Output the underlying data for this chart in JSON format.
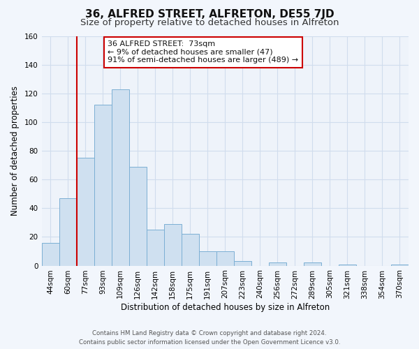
{
  "title": "36, ALFRED STREET, ALFRETON, DE55 7JD",
  "subtitle": "Size of property relative to detached houses in Alfreton",
  "xlabel": "Distribution of detached houses by size in Alfreton",
  "ylabel": "Number of detached properties",
  "bar_labels": [
    "44sqm",
    "60sqm",
    "77sqm",
    "93sqm",
    "109sqm",
    "126sqm",
    "142sqm",
    "158sqm",
    "175sqm",
    "191sqm",
    "207sqm",
    "223sqm",
    "240sqm",
    "256sqm",
    "272sqm",
    "289sqm",
    "305sqm",
    "321sqm",
    "338sqm",
    "354sqm",
    "370sqm"
  ],
  "bar_values": [
    16,
    47,
    75,
    112,
    123,
    69,
    25,
    29,
    22,
    10,
    10,
    3,
    0,
    2,
    0,
    2,
    0,
    1,
    0,
    0,
    1
  ],
  "bar_color": "#cfe0f0",
  "bar_edge_color": "#7bafd4",
  "vline_color": "#cc0000",
  "vline_x": 1.5,
  "ylim": [
    0,
    160
  ],
  "yticks": [
    0,
    20,
    40,
    60,
    80,
    100,
    120,
    140,
    160
  ],
  "annotation_lines": [
    "36 ALFRED STREET:  73sqm",
    "← 9% of detached houses are smaller (47)",
    "91% of semi-detached houses are larger (489) →"
  ],
  "annotation_box_facecolor": "#ffffff",
  "annotation_box_edgecolor": "#cc0000",
  "footer_line1": "Contains HM Land Registry data © Crown copyright and database right 2024.",
  "footer_line2": "Contains public sector information licensed under the Open Government Licence v3.0.",
  "fig_bg_color": "#f2f6fc",
  "axes_bg_color": "#eef3fa",
  "grid_color": "#d0dded",
  "title_fontsize": 11,
  "subtitle_fontsize": 9.5,
  "axis_label_fontsize": 8.5,
  "tick_fontsize": 7.5
}
